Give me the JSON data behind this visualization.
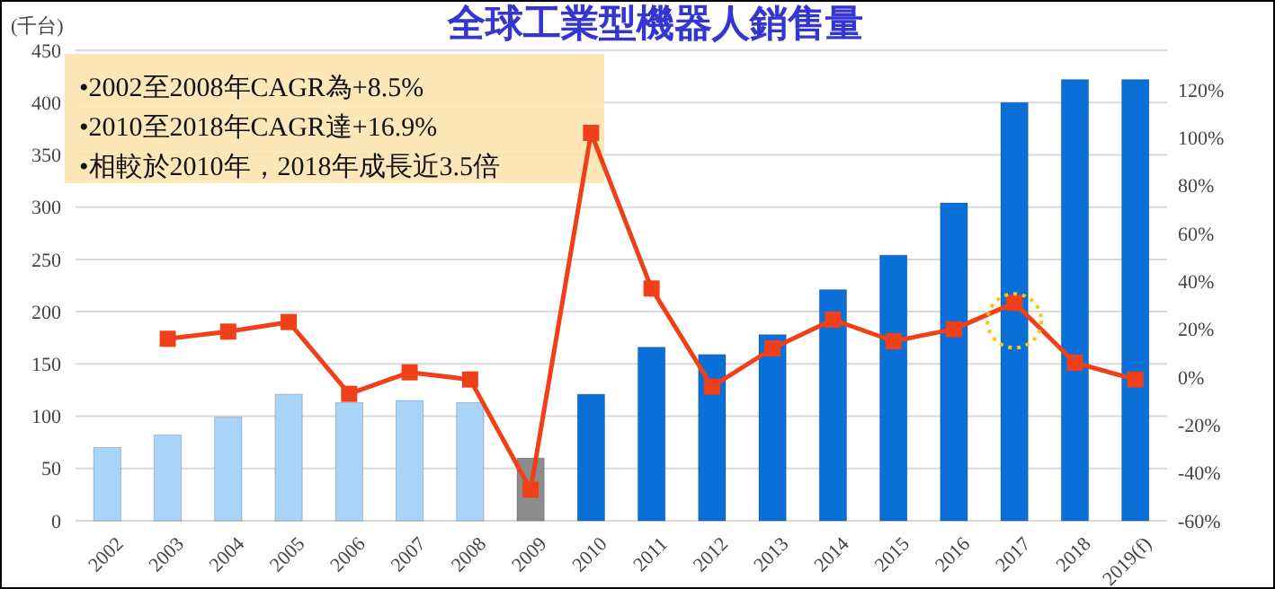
{
  "chart_data": {
    "type": "bar",
    "title": "全球工業型機器人銷售量",
    "ylabel": "(千台)",
    "annotations": [
      "•2002至2008年CAGR為+8.5%",
      "•2010至2018年CAGR達+16.9%",
      "•相較於2010年，2018年成長近3.5倍"
    ],
    "categories": [
      "2002",
      "2003",
      "2004",
      "2005",
      "2006",
      "2007",
      "2008",
      "2009",
      "2010",
      "2011",
      "2012",
      "2013",
      "2014",
      "2015",
      "2016",
      "2017",
      "2018",
      "2019(f)"
    ],
    "series": [
      {
        "colors": [
          "#a9d3f7",
          "#a9d3f7",
          "#a9d3f7",
          "#a9d3f7",
          "#a9d3f7",
          "#a9d3f7",
          "#a9d3f7",
          "#8c8c8c",
          "#0a6fd6",
          "#0a6fd6",
          "#0a6fd6",
          "#0a6fd6",
          "#0a6fd6",
          "#0a6fd6",
          "#0a6fd6",
          "#0a6fd6",
          "#0a6fd6",
          "#0a6fd6"
        ],
        "values": [
          70,
          82,
          99,
          121,
          113,
          115,
          113,
          60,
          121,
          166,
          159,
          178,
          221,
          254,
          304,
          400,
          422,
          422
        ]
      },
      {
        "type": "line",
        "axis": "y2",
        "color": "#f0401a",
        "marker": "square",
        "values": [
          null,
          16,
          19,
          23,
          -7,
          2,
          -1,
          -47,
          102,
          37,
          -4,
          12,
          24,
          15,
          20,
          31,
          6,
          -1
        ]
      }
    ],
    "ylim": [
      0,
      450
    ],
    "yticks": [
      0,
      50,
      100,
      150,
      200,
      250,
      300,
      350,
      400,
      450
    ],
    "y2lim": [
      -60,
      120
    ],
    "y2ticks": [
      {
        "value": -60,
        "label": "-60%"
      },
      {
        "value": -40,
        "label": "-40%"
      },
      {
        "value": -20,
        "label": "-20%"
      },
      {
        "value": 0,
        "label": "0%"
      },
      {
        "value": 20,
        "label": "20%"
      },
      {
        "value": 40,
        "label": "40%"
      },
      {
        "value": 60,
        "label": "60%"
      },
      {
        "value": 80,
        "label": "80%"
      },
      {
        "value": 100,
        "label": "100%"
      },
      {
        "value": 120,
        "label": "120%"
      }
    ],
    "grid": "y"
  }
}
